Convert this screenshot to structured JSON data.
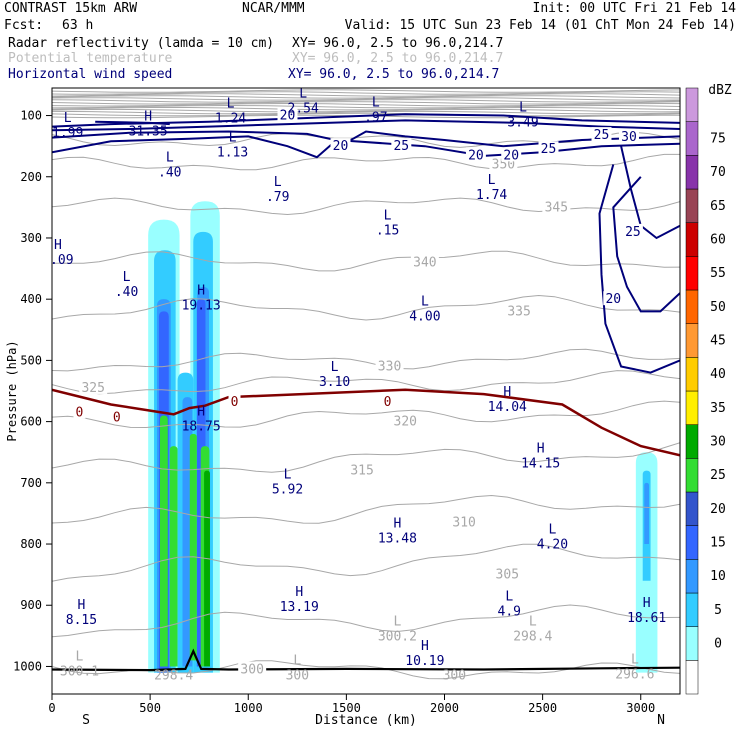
{
  "header": {
    "model": "CONTRAST 15km ARW",
    "org": "NCAR/MMM",
    "init": "Init: 00 UTC Fri 21 Feb 14",
    "fcst_label": "Fcst:",
    "fcst_value": "63 h",
    "valid": "Valid: 15 UTC Sun 23 Feb 14 (01 ChT Mon 24 Feb 14)",
    "fields": [
      {
        "name": "Radar reflectivity (lamda = 10 cm)",
        "xy": "XY=  96.0,  2.5 to  96.0,214.7",
        "color": "#000000"
      },
      {
        "name": "Potential temperature",
        "xy": "XY=  96.0,  2.5 to  96.0,214.7",
        "color": "#bdbdbd"
      },
      {
        "name": "Horizontal wind speed",
        "xy": "XY=  96.0,  2.5 to  96.0,214.7",
        "color": "#000080"
      }
    ]
  },
  "colors": {
    "theta": "#a8a8a8",
    "wind": "#00007a",
    "freezing": "#800000",
    "terrain": "#000000"
  },
  "chart_data": {
    "type": "cross-section",
    "xlabel": "Distance (km)",
    "ylabel": "Pressure (hPa)",
    "xlim": [
      0,
      3200
    ],
    "ylim": [
      1045,
      55
    ],
    "x_ticks": [
      0,
      500,
      1000,
      1500,
      2000,
      2500,
      3000
    ],
    "y_ticks": [
      100,
      200,
      300,
      400,
      500,
      600,
      700,
      800,
      900,
      1000
    ],
    "x_end_labels": {
      "left": "S",
      "right": "N"
    },
    "colorbar": {
      "units": "dBZ",
      "levels": [
        0,
        5,
        10,
        15,
        20,
        25,
        30,
        35,
        40,
        45,
        50,
        55,
        60,
        65,
        70,
        75
      ],
      "colors": [
        "#ffffff",
        "#99ffff",
        "#33ccff",
        "#3399ff",
        "#3366ff",
        "#3355cc",
        "#33dd33",
        "#00aa00",
        "#ffee00",
        "#ffcc00",
        "#ff9933",
        "#ff6600",
        "#ff0000",
        "#cc0000",
        "#994455",
        "#8833aa",
        "#aa66cc",
        "#cc99dd"
      ]
    },
    "theta_labels": [
      {
        "x": 1800,
        "p": 600,
        "v": "320"
      },
      {
        "x": 1720,
        "p": 510,
        "v": "330"
      },
      {
        "x": 2380,
        "p": 420,
        "v": "335"
      },
      {
        "x": 1900,
        "p": 340,
        "v": "340"
      },
      {
        "x": 2570,
        "p": 250,
        "v": "345"
      },
      {
        "x": 2300,
        "p": 180,
        "v": "350"
      },
      {
        "x": 210,
        "p": 545,
        "v": "325"
      },
      {
        "x": 1580,
        "p": 680,
        "v": "315"
      },
      {
        "x": 2100,
        "p": 765,
        "v": "310"
      },
      {
        "x": 2320,
        "p": 850,
        "v": "305"
      },
      {
        "x": 1020,
        "p": 1005,
        "v": "300"
      }
    ],
    "wind_labels": [
      {
        "x": 1200,
        "p": 100,
        "v": "20"
      },
      {
        "x": 1780,
        "p": 150,
        "v": "25"
      },
      {
        "x": 1470,
        "p": 150,
        "v": "20"
      },
      {
        "x": 2160,
        "p": 165,
        "v": "20"
      },
      {
        "x": 2340,
        "p": 165,
        "v": "20"
      },
      {
        "x": 2530,
        "p": 155,
        "v": "25"
      },
      {
        "x": 2800,
        "p": 132,
        "v": "25"
      },
      {
        "x": 2940,
        "p": 135,
        "v": "30"
      },
      {
        "x": 2960,
        "p": 290,
        "v": "25"
      },
      {
        "x": 2860,
        "p": 400,
        "v": "20"
      }
    ],
    "freezing_labels": [
      {
        "x": 140,
        "p": 585,
        "v": "0"
      },
      {
        "x": 330,
        "p": 593,
        "v": "0"
      },
      {
        "x": 930,
        "p": 568,
        "v": "0"
      },
      {
        "x": 1710,
        "p": 568,
        "v": "0"
      }
    ],
    "extrema": [
      {
        "x": 1280,
        "p": 80,
        "t": "L",
        "v": "2.54"
      },
      {
        "x": 1650,
        "p": 95,
        "t": "L",
        "v": ".97"
      },
      {
        "x": 910,
        "p": 97,
        "t": "L",
        "v": "1.24"
      },
      {
        "x": 2400,
        "p": 103,
        "t": "L",
        "v": "3.49"
      },
      {
        "x": 80,
        "p": 120,
        "t": "L",
        "v": "1.99"
      },
      {
        "x": 490,
        "p": 118,
        "t": "H",
        "v": "31.35"
      },
      {
        "x": 920,
        "p": 152,
        "t": "L",
        "v": "1.13"
      },
      {
        "x": 600,
        "p": 185,
        "t": "L",
        "v": ".40"
      },
      {
        "x": 1150,
        "p": 225,
        "t": "L",
        "v": ".79"
      },
      {
        "x": 2240,
        "p": 222,
        "t": "L",
        "v": "1.74"
      },
      {
        "x": 1710,
        "p": 280,
        "t": "L",
        "v": ".15"
      },
      {
        "x": 30,
        "p": 328,
        "t": "H",
        "v": "1.09"
      },
      {
        "x": 380,
        "p": 380,
        "t": "L",
        "v": ".40"
      },
      {
        "x": 760,
        "p": 402,
        "t": "H",
        "v": "19.13"
      },
      {
        "x": 1900,
        "p": 420,
        "t": "L",
        "v": "4.00"
      },
      {
        "x": 1440,
        "p": 527,
        "t": "L",
        "v": "3.10"
      },
      {
        "x": 2320,
        "p": 568,
        "t": "H",
        "v": "14.04"
      },
      {
        "x": 760,
        "p": 600,
        "t": "H",
        "v": "18.75"
      },
      {
        "x": 2490,
        "p": 660,
        "t": "H",
        "v": "14.15"
      },
      {
        "x": 1200,
        "p": 703,
        "t": "L",
        "v": "5.92"
      },
      {
        "x": 1760,
        "p": 783,
        "t": "H",
        "v": "13.48"
      },
      {
        "x": 2550,
        "p": 793,
        "t": "L",
        "v": "4.20"
      },
      {
        "x": 150,
        "p": 916,
        "t": "H",
        "v": "8.15"
      },
      {
        "x": 1260,
        "p": 895,
        "t": "H",
        "v": "13.19"
      },
      {
        "x": 2330,
        "p": 902,
        "t": "L",
        "v": "4.9"
      },
      {
        "x": 3030,
        "p": 913,
        "t": "H",
        "v": "18.61"
      },
      {
        "x": 1900,
        "p": 983,
        "t": "H",
        "v": "10.19"
      }
    ],
    "faint_extrema": [
      {
        "x": 140,
        "p": 1000,
        "t": "L",
        "v": "300.1"
      },
      {
        "x": 1760,
        "p": 943,
        "t": "L",
        "v": "300.2"
      },
      {
        "x": 2450,
        "p": 943,
        "t": "L",
        "v": "298.4"
      },
      {
        "x": 2970,
        "p": 1005,
        "t": "L",
        "v": "296.6"
      },
      {
        "x": 1250,
        "p": 1007,
        "t": "L",
        "v": "300"
      },
      {
        "x": 620,
        "p": 1007,
        "t": "",
        "v": "298.4"
      },
      {
        "x": 2050,
        "p": 1007,
        "t": "",
        "v": "300"
      }
    ]
  }
}
